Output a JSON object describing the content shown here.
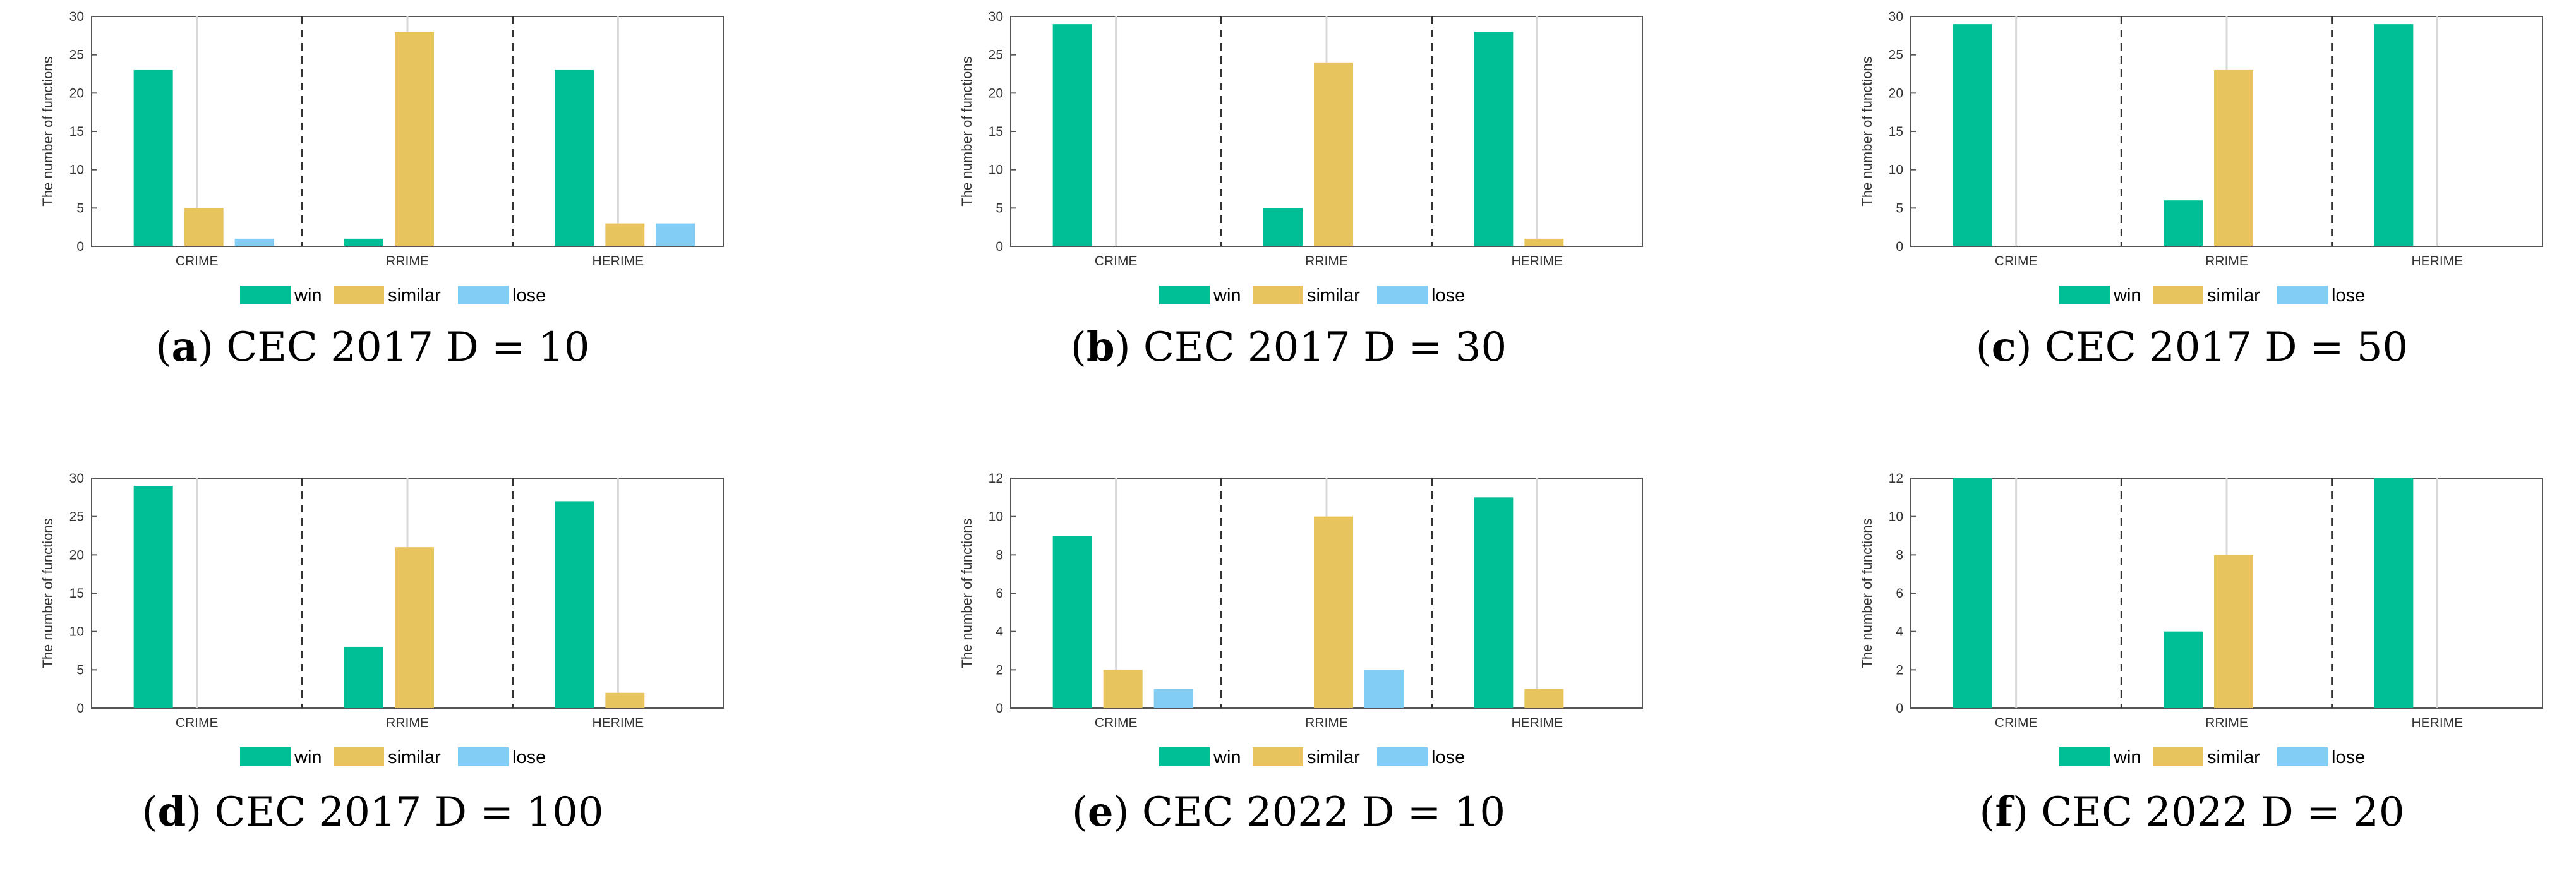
{
  "colors": {
    "win": "#00bf96",
    "similar": "#e8c45e",
    "lose": "#82cdf5",
    "axis": "#555555",
    "grid": "#d8d8d8",
    "divider": "#333333"
  },
  "chart_data": [
    {
      "type": "bar",
      "panel_label": "a",
      "caption": "CEC 2017 D = 10",
      "ylabel": "The number of functions",
      "xlabel": "",
      "categories": [
        "CRIME",
        "RRIME",
        "HERIME"
      ],
      "yticks": [
        0,
        5,
        10,
        15,
        20,
        25,
        30
      ],
      "ylim": [
        0,
        30
      ],
      "series": [
        {
          "name": "win",
          "values": [
            23,
            1,
            23
          ]
        },
        {
          "name": "similar",
          "values": [
            5,
            28,
            3
          ]
        },
        {
          "name": "lose",
          "values": [
            1,
            0,
            3
          ]
        }
      ]
    },
    {
      "type": "bar",
      "panel_label": "b",
      "caption": "CEC 2017 D = 30",
      "ylabel": "The number of functions",
      "xlabel": "",
      "categories": [
        "CRIME",
        "RRIME",
        "HERIME"
      ],
      "yticks": [
        0,
        5,
        10,
        15,
        20,
        25,
        30
      ],
      "ylim": [
        0,
        30
      ],
      "series": [
        {
          "name": "win",
          "values": [
            29,
            5,
            28
          ]
        },
        {
          "name": "similar",
          "values": [
            0,
            24,
            1
          ]
        },
        {
          "name": "lose",
          "values": [
            0,
            0,
            0
          ]
        }
      ]
    },
    {
      "type": "bar",
      "panel_label": "c",
      "caption": "CEC 2017 D = 50",
      "ylabel": "The number of functions",
      "xlabel": "",
      "categories": [
        "CRIME",
        "RRIME",
        "HERIME"
      ],
      "yticks": [
        0,
        5,
        10,
        15,
        20,
        25,
        30
      ],
      "ylim": [
        0,
        30
      ],
      "series": [
        {
          "name": "win",
          "values": [
            29,
            6,
            29
          ]
        },
        {
          "name": "similar",
          "values": [
            0,
            23,
            0
          ]
        },
        {
          "name": "lose",
          "values": [
            0,
            0,
            0
          ]
        }
      ]
    },
    {
      "type": "bar",
      "panel_label": "d",
      "caption": "CEC 2017 D = 100",
      "ylabel": "The number of functions",
      "xlabel": "",
      "categories": [
        "CRIME",
        "RRIME",
        "HERIME"
      ],
      "yticks": [
        0,
        5,
        10,
        15,
        20,
        25,
        30
      ],
      "ylim": [
        0,
        30
      ],
      "series": [
        {
          "name": "win",
          "values": [
            29,
            8,
            27
          ]
        },
        {
          "name": "similar",
          "values": [
            0,
            21,
            2
          ]
        },
        {
          "name": "lose",
          "values": [
            0,
            0,
            0
          ]
        }
      ]
    },
    {
      "type": "bar",
      "panel_label": "e",
      "caption": "CEC 2022 D = 10",
      "ylabel": "The number of functions",
      "xlabel": "",
      "categories": [
        "CRIME",
        "RRIME",
        "HERIME"
      ],
      "yticks": [
        0,
        2,
        4,
        6,
        8,
        10,
        12
      ],
      "ylim": [
        0,
        12
      ],
      "series": [
        {
          "name": "win",
          "values": [
            9,
            0,
            11
          ]
        },
        {
          "name": "similar",
          "values": [
            2,
            10,
            1
          ]
        },
        {
          "name": "lose",
          "values": [
            1,
            2,
            0
          ]
        }
      ]
    },
    {
      "type": "bar",
      "panel_label": "f",
      "caption": "CEC 2022 D = 20",
      "ylabel": "The number of functions",
      "xlabel": "",
      "categories": [
        "CRIME",
        "RRIME",
        "HERIME"
      ],
      "yticks": [
        0,
        2,
        4,
        6,
        8,
        10,
        12
      ],
      "ylim": [
        0,
        12
      ],
      "series": [
        {
          "name": "win",
          "values": [
            12,
            4,
            12
          ]
        },
        {
          "name": "similar",
          "values": [
            0,
            8,
            0
          ]
        },
        {
          "name": "lose",
          "values": [
            0,
            0,
            0
          ]
        }
      ]
    }
  ]
}
